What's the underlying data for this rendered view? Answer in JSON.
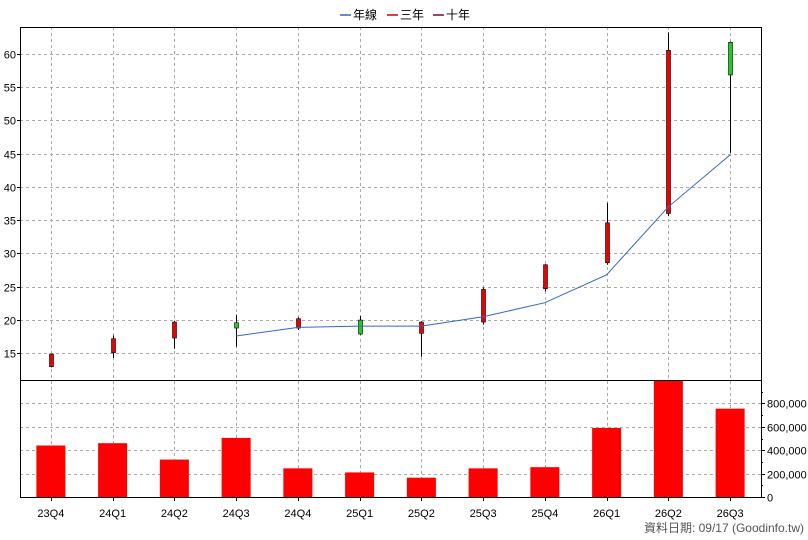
{
  "chart_data": {
    "type": "candlestick+bar",
    "legend": {
      "placement": "top-center",
      "items": [
        {
          "label": "年線",
          "color": "#3366cc"
        },
        {
          "label": "三年",
          "color": "#cc0000"
        },
        {
          "label": "十年",
          "color": "#800040"
        }
      ]
    },
    "categories": [
      "23Q4",
      "24Q1",
      "24Q2",
      "24Q3",
      "24Q4",
      "25Q1",
      "25Q2",
      "25Q3",
      "25Q4",
      "26Q1",
      "26Q2",
      "26Q3"
    ],
    "price_axis": {
      "ticks": [
        15,
        20,
        25,
        30,
        35,
        40,
        45,
        50,
        55,
        60
      ],
      "range": [
        11,
        64
      ]
    },
    "candles": [
      {
        "open": 13.0,
        "close": 14.9,
        "high": 14.9,
        "low": 12.9
      },
      {
        "open": 15.1,
        "close": 17.2,
        "high": 17.7,
        "low": 14.3
      },
      {
        "open": 17.3,
        "close": 19.7,
        "high": 19.9,
        "low": 15.7
      },
      {
        "open": 19.6,
        "close": 18.8,
        "high": 20.8,
        "low": 16.0
      },
      {
        "open": 18.8,
        "close": 20.2,
        "high": 20.4,
        "low": 18.5
      },
      {
        "open": 20.0,
        "close": 17.9,
        "high": 20.6,
        "low": 17.8
      },
      {
        "open": 18.0,
        "close": 19.7,
        "high": 19.8,
        "low": 14.5
      },
      {
        "open": 19.7,
        "close": 24.6,
        "high": 24.9,
        "low": 19.3
      },
      {
        "open": 24.7,
        "close": 28.3,
        "high": 28.4,
        "low": 24.3
      },
      {
        "open": 28.6,
        "close": 34.6,
        "high": 37.6,
        "low": 28.3
      },
      {
        "open": 36.0,
        "close": 60.5,
        "high": 63.2,
        "low": 35.6
      },
      {
        "open": 61.7,
        "close": 56.8,
        "high": 61.8,
        "low": 45.1
      }
    ],
    "candle_colors": {
      "up": "#ee0000",
      "down": "#22cc22"
    },
    "moving_average": {
      "name": "年線",
      "color": "#3366cc",
      "values": [
        null,
        null,
        null,
        17.6,
        18.9,
        19.1,
        19.1,
        20.5,
        22.6,
        26.8,
        37.0,
        44.8
      ]
    },
    "volume_axis": {
      "ticks": [
        "0",
        "200,000",
        "400,000",
        "600,000",
        "800,000"
      ],
      "range": [
        0,
        1000000
      ]
    },
    "volume": {
      "color": "#ff0000",
      "values": [
        440000,
        460000,
        320000,
        505000,
        245000,
        210000,
        165000,
        245000,
        255000,
        590000,
        1000000,
        755000
      ]
    }
  },
  "footer": {
    "source_text": "資料日期: 09/17  (Goodinfo.tw)"
  }
}
